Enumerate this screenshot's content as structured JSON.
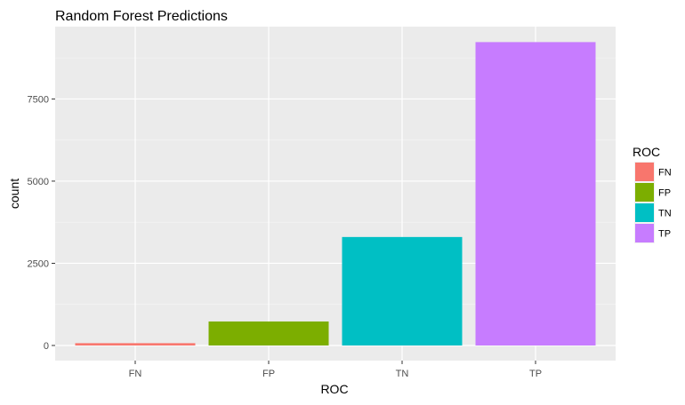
{
  "chart_data": {
    "type": "bar",
    "title": "Random Forest Predictions",
    "xlabel": "ROC",
    "ylabel": "count",
    "categories": [
      "FN",
      "FP",
      "TN",
      "TP"
    ],
    "values": [
      70,
      730,
      3300,
      9230
    ],
    "colors": [
      "#F8766D",
      "#7CAE00",
      "#00BFC4",
      "#C77CFF"
    ],
    "yticks": [
      0,
      2500,
      5000,
      7500
    ],
    "ylim": [
      -460,
      9700
    ],
    "grid": true,
    "legend": {
      "title": "ROC",
      "placement": "right",
      "entries": [
        "FN",
        "FP",
        "TN",
        "TP"
      ]
    }
  }
}
